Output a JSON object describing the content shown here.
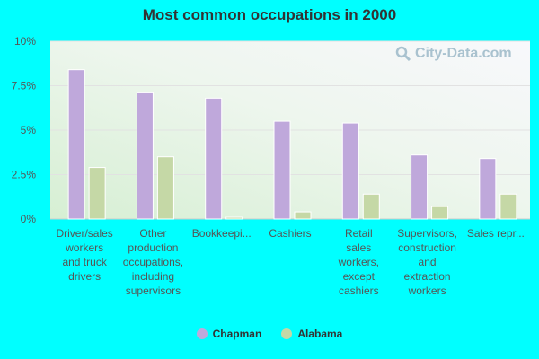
{
  "chart_data": {
    "type": "bar",
    "title": "Most common occupations in 2000",
    "categories": [
      [
        "Driver/sales",
        "workers",
        "and truck",
        "drivers"
      ],
      [
        "Other",
        "production",
        "occupations,",
        "including",
        "supervisors"
      ],
      [
        "Bookkeepi..."
      ],
      [
        "Cashiers"
      ],
      [
        "Retail",
        "sales",
        "workers,",
        "except",
        "cashiers"
      ],
      [
        "Supervisors,",
        "construction",
        "and",
        "extraction",
        "workers"
      ],
      [
        "Sales repr..."
      ]
    ],
    "series": [
      {
        "name": "Chapman",
        "color": "#bfa8db",
        "values": [
          8.4,
          7.1,
          6.8,
          5.5,
          5.4,
          3.6,
          3.4
        ]
      },
      {
        "name": "Alabama",
        "color": "#c5d8a6",
        "values": [
          2.9,
          3.5,
          0.1,
          0.4,
          1.4,
          0.7,
          1.4
        ]
      }
    ],
    "y_ticks": [
      "0%",
      "2.5%",
      "5%",
      "7.5%",
      "10%"
    ],
    "ylim": [
      0,
      10
    ],
    "legend_position": "bottom-center",
    "grid": true
  },
  "watermark": {
    "text": "City-Data.com"
  },
  "colors": {
    "page_background": "#00ffff",
    "plot_background": "#eef6ee"
  }
}
